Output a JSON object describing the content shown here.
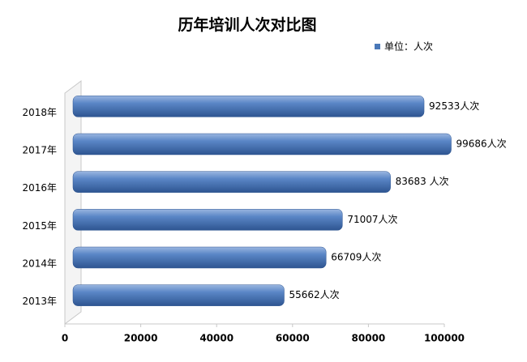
{
  "chart_data": {
    "type": "bar",
    "orientation": "horizontal",
    "title": "历年培训人次对比图",
    "categories": [
      "2018年",
      "2017年",
      "2016年",
      "2015年",
      "2014年",
      "2013年"
    ],
    "series": [
      {
        "name": "单位：人次",
        "color": "#4a78b8",
        "values": [
          92533,
          99686,
          83683,
          71007,
          66709,
          55662
        ],
        "value_labels": [
          "92533人次",
          "99686人次",
          "83683 人次",
          "71007人次",
          "66709人次",
          "55662人次"
        ]
      }
    ],
    "xlim": [
      0,
      100000
    ],
    "xticks": [
      0,
      20000,
      40000,
      60000,
      80000,
      100000
    ],
    "legend": "top-right"
  }
}
